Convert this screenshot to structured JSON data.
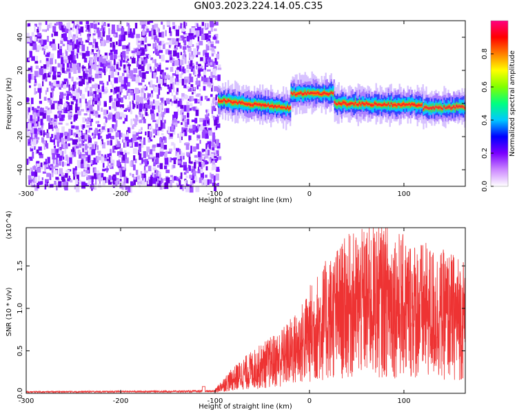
{
  "title": "GN03.2023.224.14.05.C35",
  "chart_data": [
    {
      "type": "heatmap",
      "xlabel": "Height of straight line (km)",
      "ylabel": "Frequency (Hz)",
      "xlim": [
        -300,
        165
      ],
      "ylim": [
        -50,
        50
      ],
      "xticks": [
        -300,
        -200,
        -100,
        0,
        100
      ],
      "yticks": [
        -40,
        -20,
        0,
        20,
        40
      ],
      "colorbar": {
        "label": "Normalized spectral amplitude",
        "range": [
          0,
          1
        ],
        "ticks": [
          "0.0",
          "0.2",
          "0.4",
          "0.6",
          "0.8"
        ],
        "colormap": [
          "#ffffff",
          "#cc88ff",
          "#7a00ff",
          "#0000ff",
          "#00c8ff",
          "#00ff80",
          "#80ff00",
          "#ffff00",
          "#ff8000",
          "#ff0000",
          "#ff0080"
        ]
      },
      "noise_region_x": [
        -300,
        -97
      ],
      "ridge": [
        {
          "x": [
            -97,
            -20
          ],
          "y": [
            2,
            -3
          ]
        },
        {
          "x": [
            -20,
            26
          ],
          "y": [
            6,
            6
          ]
        },
        {
          "x": [
            26,
            120
          ],
          "y": [
            0,
            -1
          ]
        },
        {
          "x": [
            120,
            165
          ],
          "y": [
            -3,
            -2
          ]
        }
      ]
    },
    {
      "type": "line",
      "xlabel": "Height of straight line (km)",
      "ylabel": "SNR (10 * v/v)",
      "multiplier": "(x10^4)",
      "xlim": [
        -300,
        165
      ],
      "ylim": [
        0,
        1.95
      ],
      "xticks": [
        -300,
        -200,
        -100,
        0,
        100
      ],
      "yticks": [
        "0.0",
        "0.5",
        "1.0",
        "1.5"
      ],
      "series": [
        {
          "color": "#ee3333",
          "envelope_x": [
            -300,
            -100,
            -90,
            -70,
            -50,
            -30,
            -10,
            0,
            20,
            40,
            60,
            80,
            100,
            120,
            140,
            165
          ],
          "envelope_y": [
            0.02,
            0.03,
            0.12,
            0.25,
            0.35,
            0.45,
            0.6,
            0.75,
            0.95,
            1.1,
            1.15,
            1.2,
            1.1,
            1.05,
            1.0,
            0.95
          ]
        }
      ]
    }
  ]
}
